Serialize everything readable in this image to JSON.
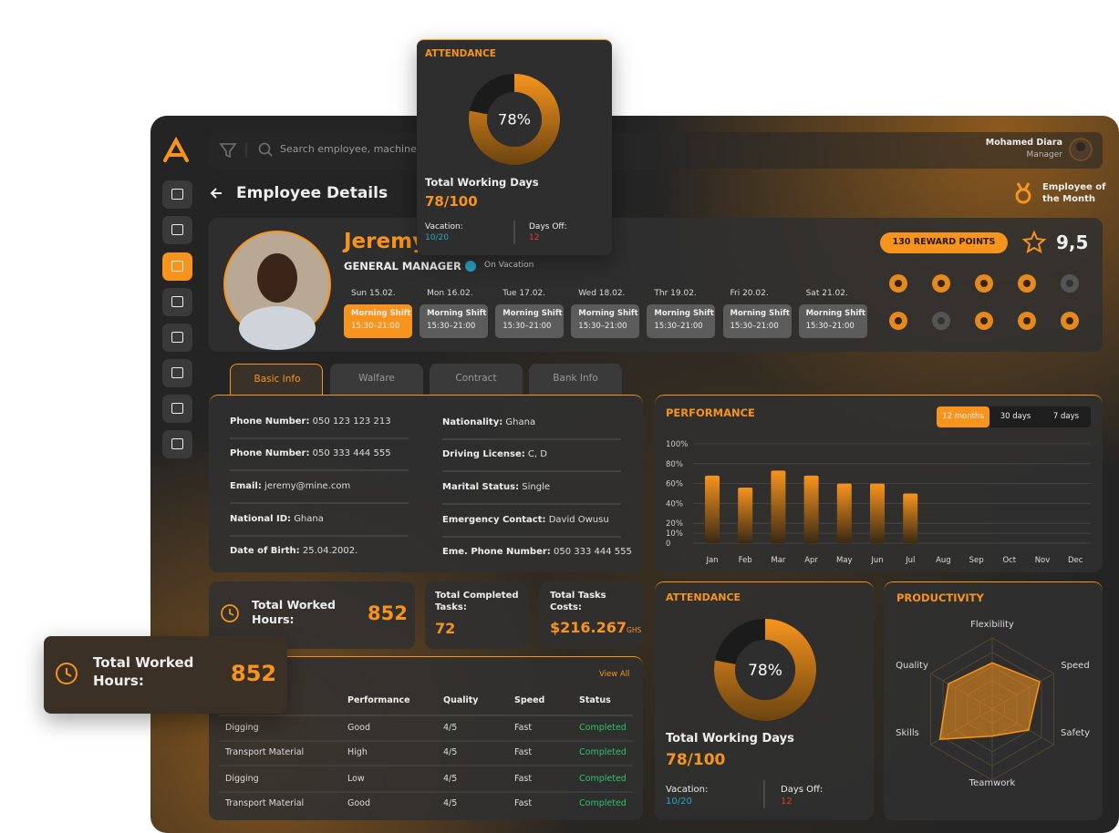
{
  "header": {
    "search_placeholder": "Search employee, machine...",
    "user_name": "Mohamed Diara",
    "user_role": "Manager"
  },
  "page_title": "Employee Details",
  "badge": "Employee of the Month",
  "employee": {
    "name": "Jeremy",
    "role": "GENERAL MANAGER",
    "status": "On Vacation",
    "reward_points": "130 REWARD POINTS",
    "rating": "9,5"
  },
  "shifts": [
    {
      "day": "Sun 15.02.",
      "shift": "Morning Shift",
      "time": "15:30–21:00"
    },
    {
      "day": "Mon 16.02.",
      "shift": "Morning Shift",
      "time": "15:30–21:00"
    },
    {
      "day": "Tue 17.02.",
      "shift": "Morning Shift",
      "time": "15:30–21:00"
    },
    {
      "day": "Wed 18.02.",
      "shift": "Morning Shift",
      "time": "15:30–21:00"
    },
    {
      "day": "Thr 19.02.",
      "shift": "Morning Shift",
      "time": "15:30–21:00"
    },
    {
      "day": "Fri 20.02.",
      "shift": "Morning Shift",
      "time": "15:30–21:00"
    },
    {
      "day": "Sat 21.02.",
      "shift": "Morning Shift",
      "time": "15:30–21:00"
    }
  ],
  "tabs": [
    "Basic Info",
    "Walfare",
    "Contract",
    "Bank Info"
  ],
  "basic_info": [
    {
      "label": "Phone Number:",
      "value": "050 123 123 213"
    },
    {
      "label": "Phone Number:",
      "value": "050 333 444 555"
    },
    {
      "label": "Email:",
      "value": "jeremy@mine.com"
    },
    {
      "label": "National ID:",
      "value": "Ghana"
    },
    {
      "label": "Date of Birth:",
      "value": "25.04.2002."
    },
    {
      "label": "Nationality:",
      "value": "Ghana"
    },
    {
      "label": "Driving License:",
      "value": "C, D"
    },
    {
      "label": "Marital Status:",
      "value": "Single"
    },
    {
      "label": "Emergency Contact:",
      "value": "David Owusu"
    },
    {
      "label": "Eme. Phone Number:",
      "value": "050 333 444 555"
    }
  ],
  "performance": {
    "title": "PERFORMANCE",
    "filters": [
      "12 months",
      "30 days",
      "7 days"
    ],
    "chart": {
      "type": "bar",
      "categories": [
        "Jan",
        "Feb",
        "Mar",
        "Apr",
        "May",
        "Jun",
        "Jul",
        "Aug",
        "Sep",
        "Oct",
        "Nov",
        "Dec"
      ],
      "values": [
        68,
        56,
        73,
        68,
        60,
        60,
        50,
        null,
        null,
        null,
        null,
        null
      ],
      "color": "#f7941d",
      "ylim": [
        0,
        100
      ],
      "yticks": [
        0,
        {
          "value": 10,
          "label": "10%"
        },
        {
          "value": 20,
          "label": "20%"
        },
        {
          "value": 40,
          "label": "40%"
        },
        {
          "value": 60,
          "label": "60%"
        },
        {
          "value": 80,
          "label": "80%"
        },
        {
          "value": 100,
          "label": "100%"
        }
      ],
      "grid": true
    }
  },
  "stats": {
    "hours": {
      "label": "Total Worked Hours:",
      "value": 852
    },
    "tasks": {
      "label": "Total Completed Tasks:",
      "value": 72
    },
    "costs": {
      "label": "Total Tasks Costs:",
      "value": "$216.267",
      "unit": "GHS"
    }
  },
  "tasks_table": {
    "view_all": "View All",
    "columns": [
      "Performance",
      "Quality",
      "Speed",
      "Status"
    ],
    "rows": [
      [
        "Digging",
        "Good",
        "4/5",
        "Fast",
        "Completed"
      ],
      [
        "Transport Material",
        "High",
        "4/5",
        "Fast",
        "Completed"
      ],
      [
        "Digging",
        "Low",
        "4/5",
        "Fast",
        "Completed"
      ],
      [
        "Transport Material",
        "Good",
        "4/5",
        "Fast",
        "Completed"
      ]
    ]
  },
  "attendance": {
    "title": "ATTENDANCE",
    "percent": {
      "value": 78,
      "label": "78%"
    },
    "days_label": "Total Working Days",
    "days": "78/100",
    "vacation_label": "Vacation:",
    "vacation": "10/20",
    "days_off_label": "Days Off:",
    "days_off": "12"
  },
  "productivity": {
    "title": "PRODUCTIVITY",
    "chart": {
      "type": "radar",
      "axes": [
        "Flexibility",
        "Speed",
        "Safety",
        "Teamwork",
        "Skills",
        "Quality"
      ],
      "values": [
        65,
        77,
        59,
        38,
        85,
        71
      ],
      "rlim": [
        0,
        100
      ],
      "color": "#f7941d"
    }
  }
}
